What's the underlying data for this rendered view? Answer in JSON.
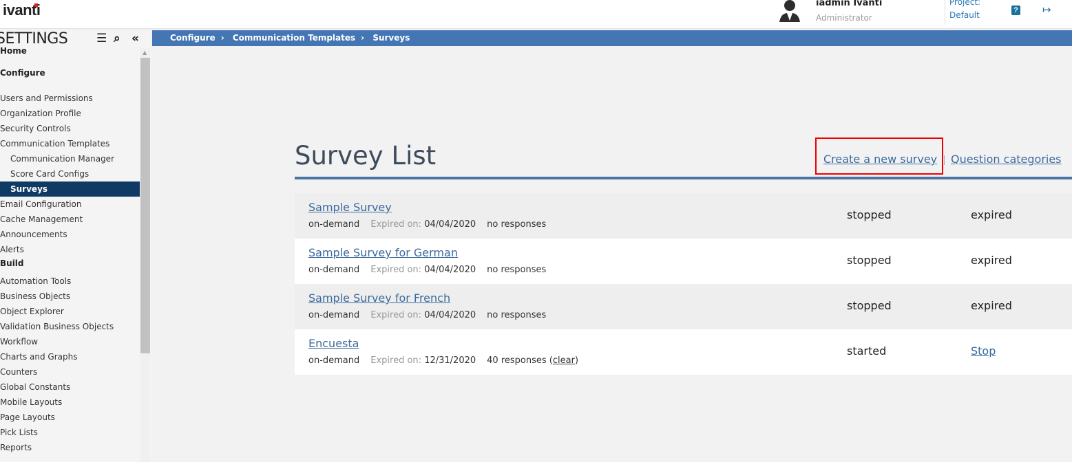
{
  "header": {
    "logo": "ivanti",
    "user_name": "iadmin Ivanti",
    "user_role": "Administrator",
    "project_label": "Project:",
    "project_value": "Default",
    "help_icon": "question-icon",
    "logout_icon": "sign-out-icon"
  },
  "sidebar": {
    "title": "SETTINGS",
    "items": [
      {
        "label": "Home",
        "type": "head"
      },
      {
        "label": "Configure",
        "type": "head"
      },
      {
        "label": "Users and Permissions"
      },
      {
        "label": "Organization Profile"
      },
      {
        "label": "Security Controls"
      },
      {
        "label": "Communication Templates"
      },
      {
        "label": "Communication Manager",
        "type": "sub"
      },
      {
        "label": "Score Card Configs",
        "type": "sub"
      },
      {
        "label": "Surveys",
        "type": "sub",
        "active": true
      },
      {
        "label": "Email Configuration"
      },
      {
        "label": "Cache Management"
      },
      {
        "label": "Announcements"
      },
      {
        "label": "Alerts"
      },
      {
        "label": "Build",
        "type": "head"
      },
      {
        "label": "Automation Tools"
      },
      {
        "label": "Business Objects"
      },
      {
        "label": "Object Explorer"
      },
      {
        "label": "Validation Business Objects"
      },
      {
        "label": "Workflow"
      },
      {
        "label": "Charts and Graphs"
      },
      {
        "label": "Counters"
      },
      {
        "label": "Global Constants"
      },
      {
        "label": "Mobile Layouts"
      },
      {
        "label": "Page Layouts"
      },
      {
        "label": "Pick Lists"
      },
      {
        "label": "Reports"
      }
    ]
  },
  "breadcrumb": [
    "Configure",
    "Communication Templates",
    "Surveys"
  ],
  "main": {
    "title": "Survey List",
    "create_link": "Create a new survey",
    "categories_link": "Question categories",
    "expired_label": "Expired on:",
    "surveys": [
      {
        "name": "Sample Survey",
        "type": "on-demand",
        "expired": "04/04/2020",
        "responses": "no responses",
        "status": "stopped",
        "action": "expired"
      },
      {
        "name": "Sample Survey for German",
        "type": "on-demand",
        "expired": "04/04/2020",
        "responses": "no responses",
        "status": "stopped",
        "action": "expired"
      },
      {
        "name": "Sample Survey for French",
        "type": "on-demand",
        "expired": "04/04/2020",
        "responses": "no responses",
        "status": "stopped",
        "action": "expired"
      },
      {
        "name": "Encuesta",
        "type": "on-demand",
        "expired": "12/31/2020",
        "responses": "40 responses",
        "clear": "clear",
        "status": "started",
        "action": "Stop"
      }
    ]
  },
  "colors": {
    "breadcrumb_bg": "#4576b4",
    "active_item": "#0e3a63",
    "link": "#3a6a9e",
    "highlight": "#ee0000"
  }
}
